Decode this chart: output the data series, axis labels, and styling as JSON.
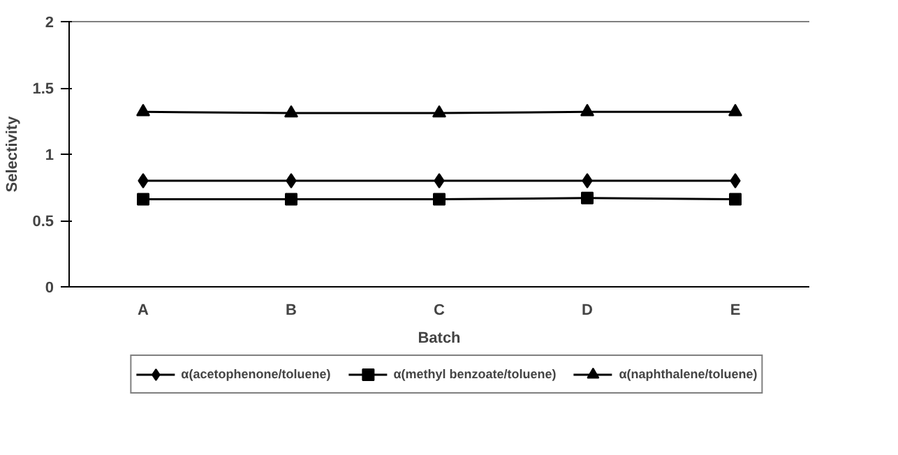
{
  "chart_data": {
    "type": "line",
    "xlabel": "Batch",
    "ylabel": "Selectivity",
    "categories": [
      "A",
      "B",
      "C",
      "D",
      "E"
    ],
    "ylim": [
      0,
      2
    ],
    "yticks": [
      0,
      0.5,
      1,
      1.5,
      2
    ],
    "grid": false,
    "legend": "bottom",
    "series": [
      {
        "name": "α(acetophenone/toluene)",
        "color": "#000000",
        "marker": "diamond",
        "values": [
          0.8,
          0.8,
          0.8,
          0.8,
          0.8
        ]
      },
      {
        "name": "α(methyl benzoate/toluene)",
        "color": "#000000",
        "marker": "square",
        "values": [
          0.66,
          0.66,
          0.66,
          0.67,
          0.66
        ]
      },
      {
        "name": "α(naphthalene/toluene)",
        "color": "#000000",
        "marker": "triangle",
        "values": [
          1.32,
          1.31,
          1.31,
          1.32,
          1.32
        ]
      }
    ]
  }
}
